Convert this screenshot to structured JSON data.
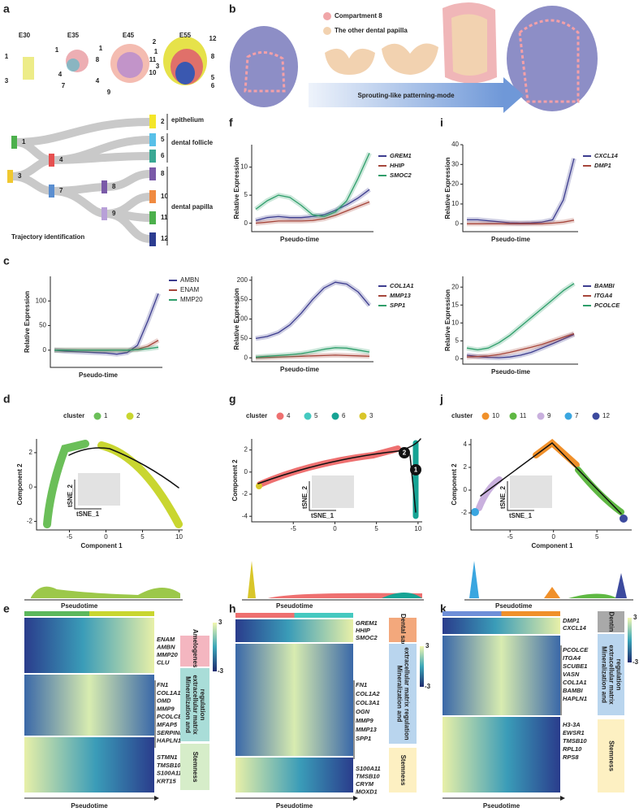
{
  "figure": {
    "labels": [
      "a",
      "b",
      "c",
      "d",
      "e",
      "f",
      "g",
      "h",
      "i",
      "j",
      "k"
    ],
    "a": {
      "stages": [
        "E30",
        "E35",
        "E45",
        "E55"
      ],
      "stage_numbers": [
        [
          "1",
          "3"
        ],
        [
          "1",
          "4",
          "7"
        ],
        [
          "1",
          "8",
          "4",
          "9",
          "11",
          "10"
        ],
        [
          "2",
          "12",
          "1",
          "8",
          "3",
          "5",
          "6"
        ]
      ],
      "nodes": [
        "1",
        "4",
        "3",
        "7",
        "8",
        "9",
        "2",
        "5",
        "6",
        "8",
        "10",
        "11",
        "12"
      ],
      "groups": [
        "epithelium",
        "dental follicle",
        "dental papilla"
      ],
      "caption": "Trajectory identification"
    },
    "b": {
      "legend": [
        "Compartment 8",
        "The other dental papilla"
      ],
      "arrow": "Sprouting-like patterning-mode"
    },
    "scatters": [
      {
        "legend_title": "cluster",
        "clusters": [
          "1",
          "2"
        ],
        "colors": [
          "#6bbf59",
          "#c9d630"
        ],
        "xlim": [
          -9.5,
          10.5
        ],
        "ylim": [
          -2.5,
          2.8
        ],
        "xticks": [
          -5,
          0,
          5,
          10
        ],
        "yticks": [
          -2,
          0,
          2
        ],
        "x_label": "Component 1",
        "y_label": "Component 2",
        "inset_x": "tSNE_1",
        "inset_y": "tSNE_2",
        "density_label": "Pseudotime"
      },
      {
        "legend_title": "cluster",
        "clusters": [
          "4",
          "5",
          "6",
          "3"
        ],
        "colors": [
          "#ee7070",
          "#45c9c0",
          "#16a394",
          "#d9c62a"
        ],
        "xlim": [
          -10,
          10.5
        ],
        "ylim": [
          -4.5,
          3
        ],
        "xticks": [
          -5,
          0,
          5,
          10
        ],
        "yticks": [
          -4,
          -2,
          0,
          2
        ],
        "y_label": "Component 2",
        "inset_x": "tSNE_1",
        "inset_y": "tSNE_2",
        "density_label": "Pseudotime",
        "branch_points": [
          "2",
          "1"
        ]
      },
      {
        "legend_title": "cluster",
        "clusters": [
          "10",
          "11",
          "9",
          "7",
          "12"
        ],
        "colors": [
          "#f0902a",
          "#5fb843",
          "#c9b0de",
          "#3aa6e0",
          "#3c4a9e"
        ],
        "xlim": [
          -9.5,
          9
        ],
        "ylim": [
          -3.5,
          4.5
        ],
        "xticks": [
          -5,
          0,
          5
        ],
        "yticks": [
          -2,
          0,
          2,
          4
        ],
        "x_label": "Component 1",
        "y_label": "Component 2",
        "inset_x": "tSNE_1",
        "inset_y": "tSNE_2",
        "density_label": "Pseudotime"
      }
    ],
    "heatmaps": [
      {
        "genes": [
          [
            "ENAM",
            "AMBN",
            "MMP20",
            "CLU"
          ],
          [
            "FN1",
            "COL1A1",
            "OMD",
            "MMP9",
            "PCOLCE",
            "MFAP5",
            "SERPINF1",
            "HAPLN1"
          ],
          [
            "STMN1",
            "TMSB10",
            "S100A11",
            "KRT15"
          ]
        ],
        "categories": [
          {
            "lines": [
              "Amelogenesis"
            ],
            "color": "#f4b6c0"
          },
          {
            "lines": [
              "Mineralization and",
              "extracellular matrix",
              "regulation"
            ],
            "color": "#a9ddd8"
          },
          {
            "lines": [
              "Stemness"
            ],
            "color": "#d6edc9"
          }
        ],
        "scale": [
          3,
          -3
        ],
        "x_label": "Pseudotime",
        "bar_colors": [
          "#5cb85c",
          "#c9d630"
        ]
      },
      {
        "genes": [
          [
            "GREM1",
            "HHIP",
            "SMOC2"
          ],
          [
            "FN1",
            "COL1A2",
            "COL3A1",
            "OGN",
            "MMP9",
            "MMP13",
            "SPP1"
          ],
          [
            "S100A11",
            "TMSB10",
            "CRYM",
            "MOXD1"
          ]
        ],
        "categories": [
          {
            "lines": [
              "Dental sac"
            ],
            "color": "#f3a87c"
          },
          {
            "lines": [
              "Mineralization and",
              "extracellular matrix regulation"
            ],
            "color": "#b9d5ee"
          },
          {
            "lines": [
              "Stemness"
            ],
            "color": "#fdf0c2"
          }
        ],
        "scale": [
          3,
          -3
        ],
        "x_label": "Pseudotime",
        "bar_colors": [
          "#ee7070",
          "#45c9c0"
        ]
      },
      {
        "genes": [
          [
            "DMP1",
            "CXCL14"
          ],
          [
            "PCOLCE",
            "ITGA4",
            "SCUBE1",
            "VASN",
            "COL1A1",
            "BAMBI",
            "HAPLN1"
          ],
          [
            "H3-3A",
            "EWSR1",
            "TMSB10",
            "RPL10",
            "RPS8"
          ]
        ],
        "categories": [
          {
            "lines": [
              "Dentin"
            ],
            "color": "#a9a9a9"
          },
          {
            "lines": [
              "Mineralization and",
              "extracellular matrix",
              "regulation"
            ],
            "color": "#b9d5ee"
          },
          {
            "lines": [
              "Stemness"
            ],
            "color": "#fdf0c2"
          }
        ],
        "scale": [
          3,
          -3
        ],
        "x_label": "Pseudotime",
        "bar_colors": [
          "#6f8fd8",
          "#f0902a"
        ]
      }
    ]
  },
  "chart_data": [
    {
      "type": "line",
      "x_label": "Pseudo-time",
      "y_label": "Relative Expression",
      "ylim": [
        -35,
        150
      ],
      "yticks": [
        0,
        50,
        100
      ],
      "series": [
        {
          "name": "AMBN",
          "color": "#3d3d8f",
          "values": [
            0,
            -2,
            -3,
            -4,
            -5,
            -6,
            -8,
            -5,
            10,
            60,
            115
          ]
        },
        {
          "name": "ENAM",
          "color": "#a6463b",
          "values": [
            0,
            0,
            0,
            0,
            0,
            0,
            0,
            0,
            2,
            8,
            20
          ]
        },
        {
          "name": "MMP20",
          "color": "#2e9e6a",
          "values": [
            0,
            0,
            0,
            0,
            0,
            0,
            0,
            0,
            1,
            3,
            6
          ]
        }
      ]
    },
    {
      "type": "line",
      "x_label": "Pseudo-time",
      "y_label": "Relative Expression",
      "ylim": [
        -1.5,
        14
      ],
      "yticks": [
        0,
        5,
        10
      ],
      "series": [
        {
          "name": "GREM1",
          "color": "#3d3d8f",
          "values": [
            0.5,
            1,
            1.2,
            1,
            1,
            1.2,
            1.5,
            2.3,
            3.3,
            4.5,
            6
          ]
        },
        {
          "name": "HHIP",
          "color": "#a6463b",
          "values": [
            0,
            0.2,
            0.4,
            0.4,
            0.4,
            0.5,
            0.8,
            1.4,
            2.2,
            3,
            3.8
          ]
        },
        {
          "name": "SMOC2",
          "color": "#2e9e6a",
          "values": [
            2.5,
            4,
            5,
            4.6,
            3.2,
            1.5,
            1.2,
            2,
            4,
            8,
            12.5
          ]
        }
      ]
    },
    {
      "type": "line",
      "x_label": "Pseudo-time",
      "y_label": "Relative Expression",
      "ylim": [
        -10,
        210
      ],
      "yticks": [
        0,
        50,
        100,
        150,
        200
      ],
      "series": [
        {
          "name": "COL1A1",
          "color": "#3d3d8f",
          "values": [
            50,
            55,
            65,
            85,
            115,
            150,
            180,
            195,
            190,
            170,
            135
          ]
        },
        {
          "name": "MMP13",
          "color": "#a6463b",
          "values": [
            0,
            1,
            2,
            3,
            4,
            5,
            6,
            7,
            6,
            5,
            4
          ]
        },
        {
          "name": "SPP1",
          "color": "#2e9e6a",
          "values": [
            2,
            4,
            6,
            8,
            11,
            16,
            22,
            26,
            25,
            20,
            15
          ]
        }
      ]
    },
    {
      "type": "line",
      "x_label": "Pseudo-time",
      "y_label": "Relative Expression",
      "ylim": [
        -4,
        40
      ],
      "yticks": [
        0,
        10,
        20,
        30,
        40
      ],
      "series": [
        {
          "name": "CXCL14",
          "color": "#3d3d8f",
          "values": [
            2,
            2,
            1.5,
            1,
            0.5,
            0.3,
            0.5,
            0.8,
            2,
            12,
            33
          ]
        },
        {
          "name": "DMP1",
          "color": "#a6463b",
          "values": [
            0,
            0,
            0,
            0,
            0,
            0,
            0,
            0,
            0.3,
            0.8,
            1.8
          ]
        }
      ]
    },
    {
      "type": "line",
      "x_label": "Pseudo-time",
      "y_label": "Relative Expression",
      "ylim": [
        -1.5,
        23
      ],
      "yticks": [
        0,
        5,
        10,
        15,
        20
      ],
      "series": [
        {
          "name": "BAMBI",
          "color": "#3d3d8f",
          "values": [
            1,
            0.6,
            0.4,
            0.3,
            0.5,
            1,
            1.8,
            3,
            4.2,
            5.5,
            6.8
          ]
        },
        {
          "name": "ITGA4",
          "color": "#a6463b",
          "values": [
            0.5,
            0.6,
            0.8,
            1.2,
            1.8,
            2.5,
            3.2,
            4,
            5,
            6,
            7
          ]
        },
        {
          "name": "PCOLCE",
          "color": "#2e9e6a",
          "values": [
            3,
            2.5,
            3,
            4.5,
            6.5,
            9,
            11.5,
            14,
            16.5,
            19,
            21
          ]
        }
      ]
    }
  ]
}
